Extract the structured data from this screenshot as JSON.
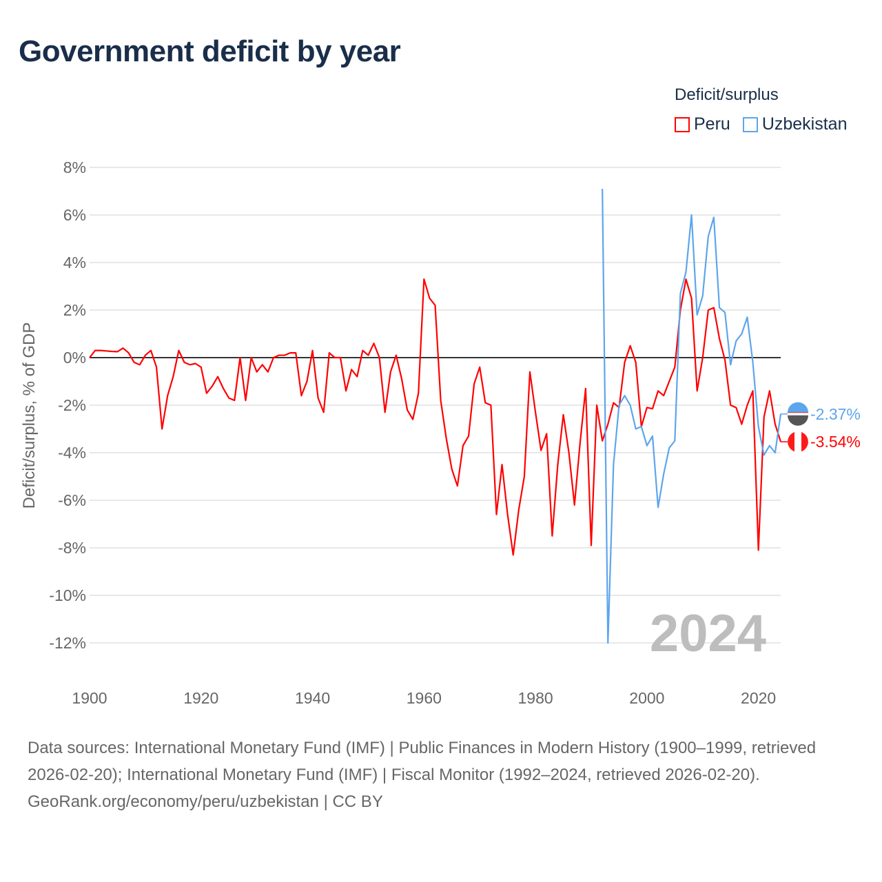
{
  "title": "Government deficit by year",
  "legend": {
    "title": "Deficit/surplus",
    "items": [
      {
        "name": "Peru",
        "color": "#ff0000"
      },
      {
        "name": "Uzbekistan",
        "color": "#5da5ec"
      }
    ]
  },
  "footer": {
    "sources": "Data sources: International Monetary Fund (IMF) | Public Finances in Modern History (1900–1999, retrieved 2026-02-20); International Monetary Fund (IMF) | Fiscal Monitor (1992–2024, retrieved 2026-02-20).",
    "credit": "GeoRank.org/economy/peru/uzbekistan | CC BY"
  },
  "chart_data": {
    "type": "line",
    "title": "Government deficit by year",
    "xlabel": "",
    "ylabel": "Deficit/surplus, % of GDP",
    "xlim": [
      1900,
      2024
    ],
    "ylim": [
      -12,
      8
    ],
    "xticks": [
      1900,
      1920,
      1940,
      1960,
      1980,
      2000,
      2020
    ],
    "yticks": [
      8,
      6,
      4,
      2,
      0,
      -2,
      -4,
      -6,
      -8,
      -10,
      -12
    ],
    "ytick_labels": [
      "8%",
      "6%",
      "4%",
      "2%",
      "0%",
      "-2%",
      "-4%",
      "-6%",
      "-8%",
      "-10%",
      "-12%"
    ],
    "grid": true,
    "legend_position": "top-right",
    "year_label": "2024",
    "series": [
      {
        "name": "Peru",
        "color": "#ff0000",
        "start_year": 1900,
        "end_label": "-3.54%",
        "values": [
          0,
          0.3,
          0.3,
          0.28,
          0.26,
          0.25,
          0.4,
          0.2,
          -0.2,
          -0.3,
          0.1,
          0.3,
          -0.4,
          -3.0,
          -1.6,
          -0.8,
          0.3,
          -0.2,
          -0.3,
          -0.25,
          -0.4,
          -1.5,
          -1.2,
          -0.8,
          -1.3,
          -1.7,
          -1.8,
          0,
          -1.8,
          0,
          -0.6,
          -0.3,
          -0.6,
          0,
          0.1,
          0.1,
          0.2,
          0.2,
          -1.6,
          -1.0,
          0.3,
          -1.7,
          -2.3,
          0.2,
          0,
          0,
          -1.4,
          -0.5,
          -0.8,
          0.3,
          0.1,
          0.6,
          0,
          -2.3,
          -0.6,
          0.1,
          -0.9,
          -2.2,
          -2.6,
          -1.5,
          3.3,
          2.5,
          2.2,
          -1.8,
          -3.4,
          -4.7,
          -5.4,
          -3.7,
          -3.3,
          -1.1,
          -0.4,
          -1.9,
          -2.0,
          -6.6,
          -4.5,
          -6.6,
          -8.3,
          -6.4,
          -5.0,
          -0.6,
          -2.3,
          -3.9,
          -3.2,
          -7.5,
          -4.5,
          -2.4,
          -4.0,
          -6.2,
          -3.6,
          -1.3,
          -7.9,
          -2.0,
          -3.5,
          -2.8,
          -1.9,
          -2.1,
          -0.2,
          0.5,
          -0.2,
          -2.9,
          -2.1,
          -2.15,
          -1.4,
          -1.6,
          -1.0,
          -0.4,
          2.0,
          3.3,
          2.5,
          -1.4,
          0.0,
          2.0,
          2.1,
          0.8,
          -0.1,
          -2.0,
          -2.1,
          -2.8,
          -2.0,
          -1.4,
          -8.1,
          -2.5,
          -1.4,
          -2.8,
          -3.54
        ]
      },
      {
        "name": "Uzbekistan",
        "color": "#5da5ec",
        "start_year": 1992,
        "end_label": "-2.37%",
        "values": [
          7.1,
          -12.0,
          -4.5,
          -2.0,
          -1.6,
          -2.0,
          -3.0,
          -2.9,
          -3.7,
          -3.3,
          -6.3,
          -4.9,
          -3.8,
          -3.5,
          2.7,
          3.6,
          6.0,
          1.8,
          2.6,
          5.1,
          5.9,
          2.1,
          1.9,
          -0.3,
          0.7,
          1.0,
          1.7,
          -0.2,
          -2.9,
          -4.1,
          -3.7,
          -4.0,
          -2.37
        ]
      }
    ]
  }
}
